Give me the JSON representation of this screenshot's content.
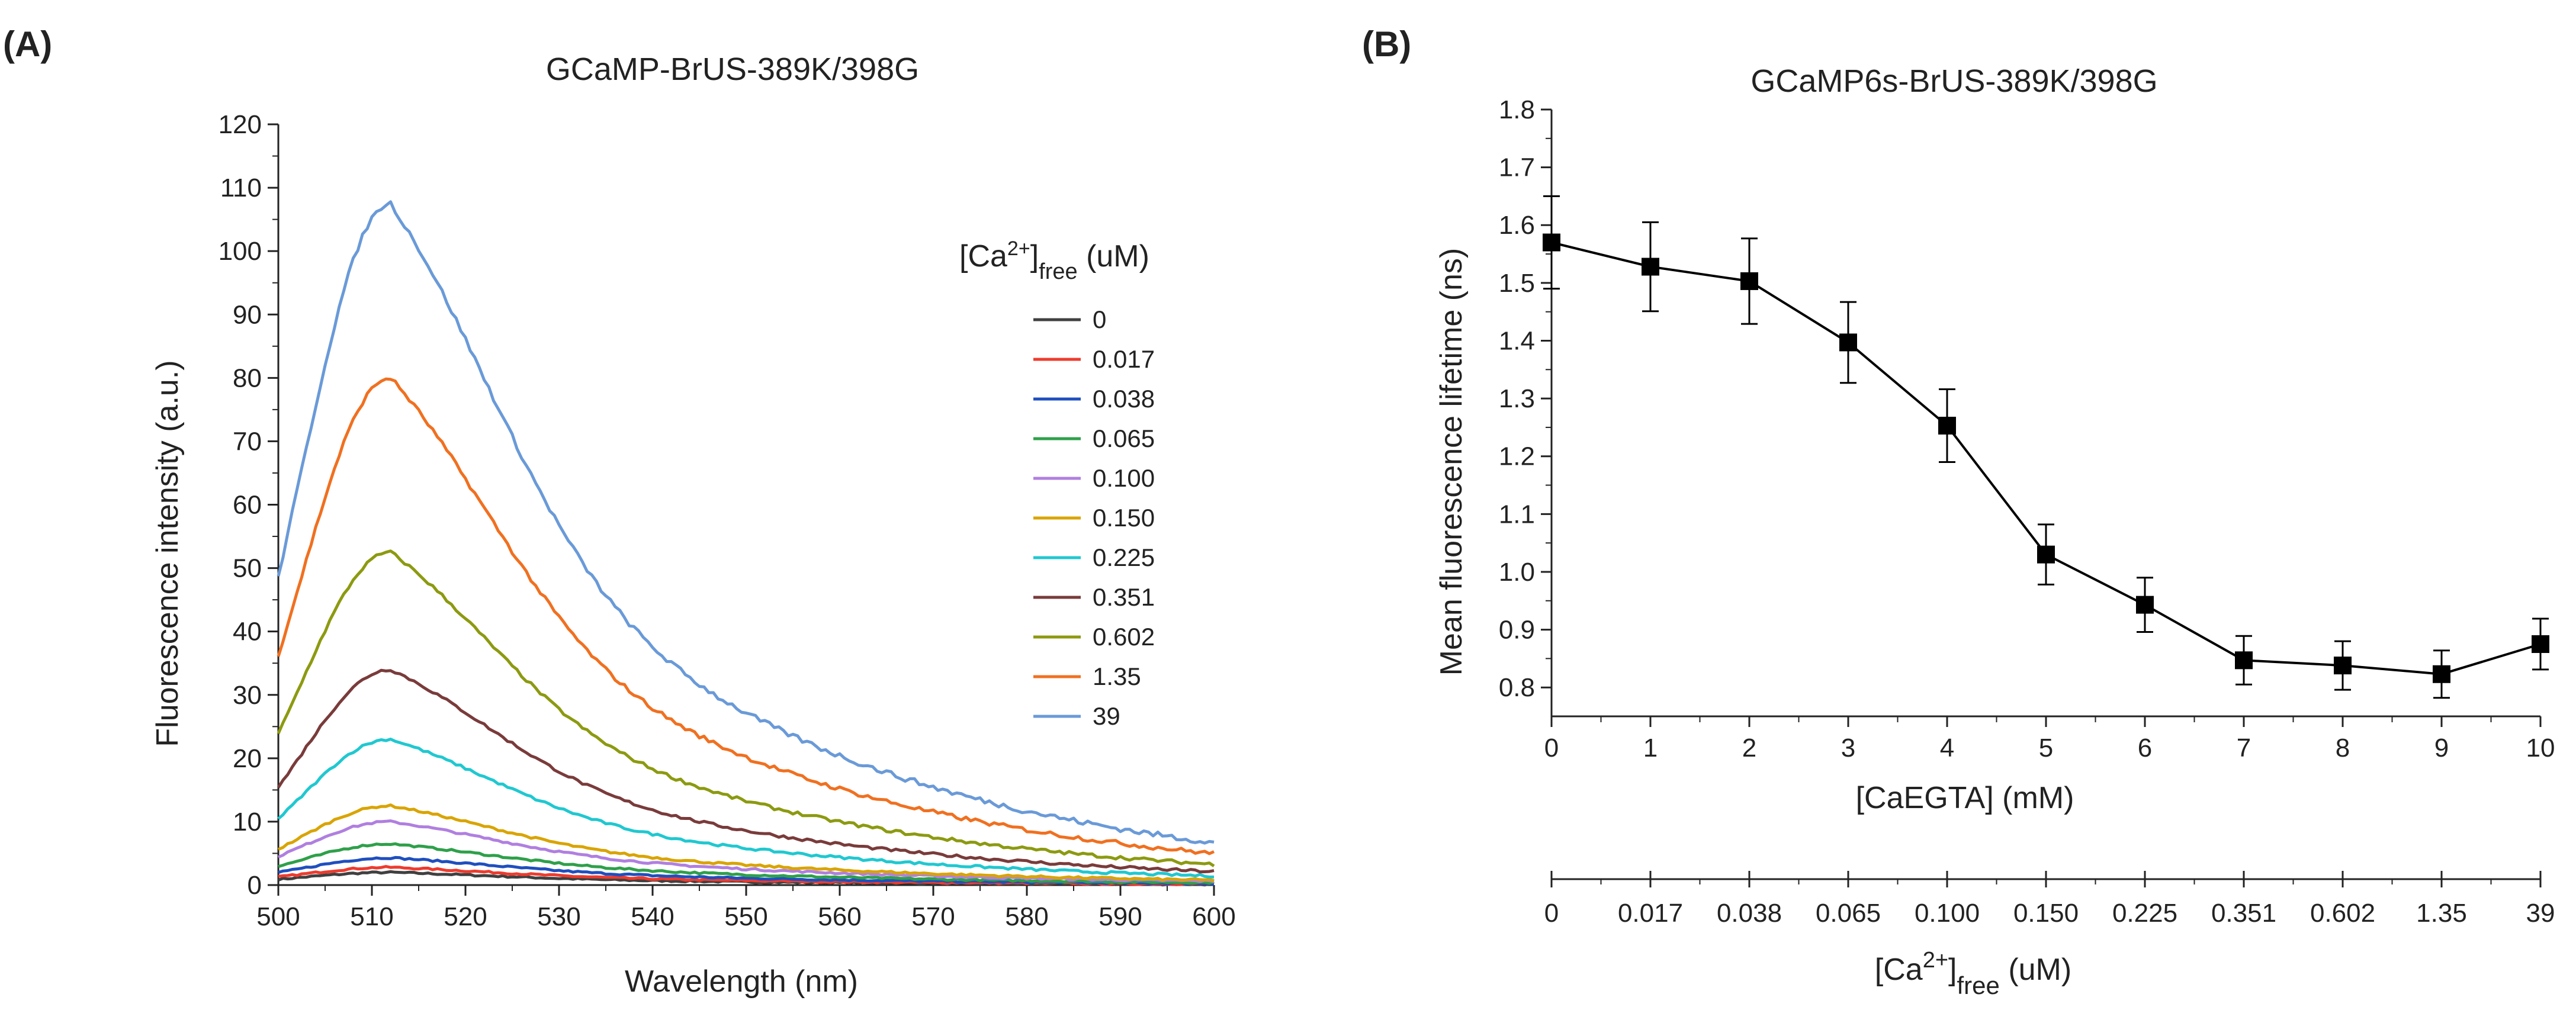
{
  "figure": {
    "panel_a_label": "(A)",
    "panel_b_label": "(B)"
  },
  "chart_data": [
    {
      "type": "line",
      "panel": "(A)",
      "title": "GCaMP-BrUS-389K/398G",
      "xlabel": "Wavelength (nm)",
      "ylabel": "Fluorescence intensity (a.u.)",
      "xlim": [
        500,
        600
      ],
      "ylim": [
        0,
        120
      ],
      "xticks": [
        500,
        510,
        520,
        530,
        540,
        550,
        560,
        570,
        580,
        590,
        600
      ],
      "yticks": [
        0,
        10,
        20,
        30,
        40,
        50,
        60,
        70,
        80,
        90,
        100,
        110,
        120
      ],
      "legend_title": {
        "main": "[Ca",
        "sup": "2+",
        "close": "]",
        "sub": "free",
        "unit": " (uM)"
      },
      "legend_position": "right",
      "peak_wavelength": 512,
      "series": [
        {
          "name": "0",
          "color": "#404040",
          "peak": 2.0
        },
        {
          "name": "0.017",
          "color": "#ee3b2e",
          "peak": 2.8
        },
        {
          "name": "0.038",
          "color": "#1f4fbf",
          "peak": 4.3
        },
        {
          "name": "0.065",
          "color": "#2ea04a",
          "peak": 6.5
        },
        {
          "name": "0.100",
          "color": "#b07fe0",
          "peak": 10.0
        },
        {
          "name": "0.150",
          "color": "#d9a400",
          "peak": 12.5
        },
        {
          "name": "0.225",
          "color": "#20c8d0",
          "peak": 23.0
        },
        {
          "name": "0.351",
          "color": "#7a3b3b",
          "peak": 34.0
        },
        {
          "name": "0.602",
          "color": "#8c9a10",
          "peak": 52.5
        },
        {
          "name": "1.35",
          "color": "#f07020",
          "peak": 80.0
        },
        {
          "name": "39",
          "color": "#6a9ad8",
          "peak": 107.5
        }
      ]
    },
    {
      "type": "line",
      "panel": "(B)",
      "title": "GCaMP6s-BrUS-389K/398G",
      "xlabel": "[CaEGTA] (mM)",
      "ylabel": "Mean fluorescence lifetime (ns)",
      "xlim": [
        0,
        10
      ],
      "ylim": [
        0.75,
        1.8
      ],
      "xticks": [
        0,
        1,
        2,
        3,
        4,
        5,
        6,
        7,
        8,
        9,
        10
      ],
      "yticks": [
        0.8,
        0.9,
        1.0,
        1.1,
        1.2,
        1.3,
        1.4,
        1.5,
        1.6,
        1.7,
        1.8
      ],
      "ytick_labels": [
        "0.8",
        "0.9",
        "1.0",
        "1.1",
        "1.2",
        "1.3",
        "1.4",
        "1.5",
        "1.6",
        "1.7",
        "1.8"
      ],
      "x": [
        0,
        1,
        2,
        3,
        4,
        5,
        6,
        7,
        8,
        9,
        10
      ],
      "y": [
        1.57,
        1.528,
        1.503,
        1.397,
        1.253,
        1.03,
        0.943,
        0.847,
        0.838,
        0.823,
        0.875
      ],
      "yerr": [
        0.08,
        0.077,
        0.074,
        0.07,
        0.063,
        0.052,
        0.047,
        0.042,
        0.042,
        0.041,
        0.044
      ],
      "secondary_xaxis": {
        "label": {
          "main": "[Ca",
          "sup": "2+",
          "close": "]",
          "sub": "free",
          "unit": " (uM)"
        },
        "tick_labels": [
          "0",
          "0.017",
          "0.038",
          "0.065",
          "0.100",
          "0.150",
          "0.225",
          "0.351",
          "0.602",
          "1.35",
          "39"
        ]
      },
      "line_color": "#000000"
    }
  ]
}
